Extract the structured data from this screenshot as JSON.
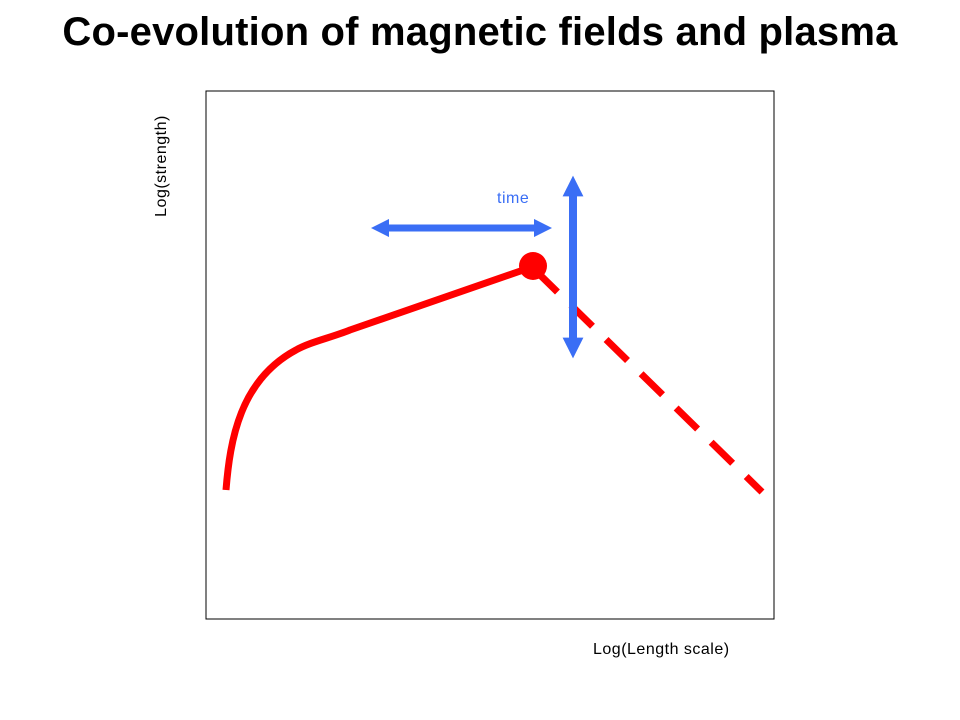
{
  "title": "Co-evolution of magnetic fields and plasma",
  "axes": {
    "x_label": "Log(Length scale)",
    "y_label": "Log(strength)"
  },
  "annotations": {
    "time_label": "time"
  },
  "colors": {
    "curve": "#ff0000",
    "arrows": "#3a6ef5",
    "frame": "#000000",
    "time_label": "#3a6ef5"
  }
}
